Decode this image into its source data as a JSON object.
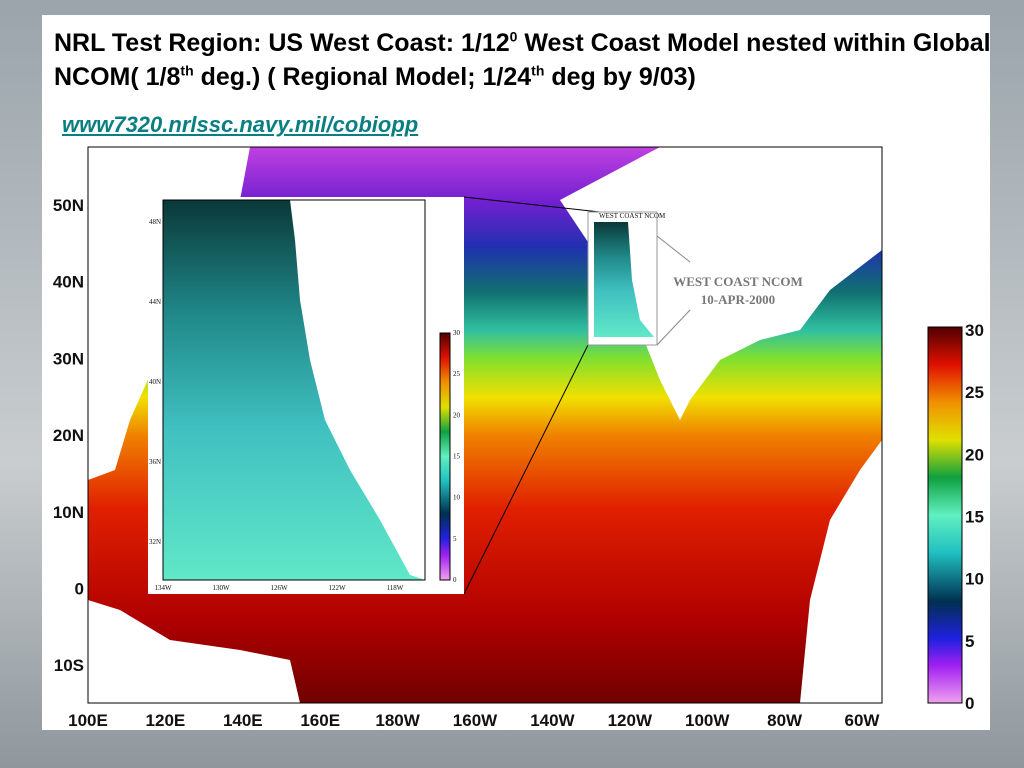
{
  "title_parts": [
    "NRL Test Region: US  West Coast: 1/12",
    "0",
    "  West Coast Model nested within  Global NCOM( 1/8",
    "th",
    " deg.) ( Regional Model; 1/24",
    "th",
    " deg by 9/03)"
  ],
  "url": "www7320.nrlssc.navy.mil/cobiopp",
  "map": {
    "lat_labels": [
      "50N",
      "40N",
      "30N",
      "20N",
      "10N",
      "0",
      "10S"
    ],
    "lon_labels": [
      "100E",
      "120E",
      "140E",
      "160E",
      "180W",
      "160W",
      "140W",
      "120W",
      "100W",
      "80W",
      "60W"
    ],
    "colorbar_ticks": [
      0,
      5,
      10,
      15,
      20,
      25,
      30
    ]
  },
  "inset": {
    "lat_labels": [
      "48N",
      "44N",
      "40N",
      "36N",
      "32N"
    ],
    "lon_labels": [
      "134W",
      "130W",
      "126W",
      "122W",
      "118W"
    ],
    "colorbar_ticks": [
      0,
      5,
      10,
      15,
      20,
      25,
      30
    ]
  },
  "small_inset": {
    "title": "WEST COAST NCOM"
  },
  "annotation": {
    "line1": "WEST COAST NCOM",
    "line2": "10-APR-2000"
  }
}
